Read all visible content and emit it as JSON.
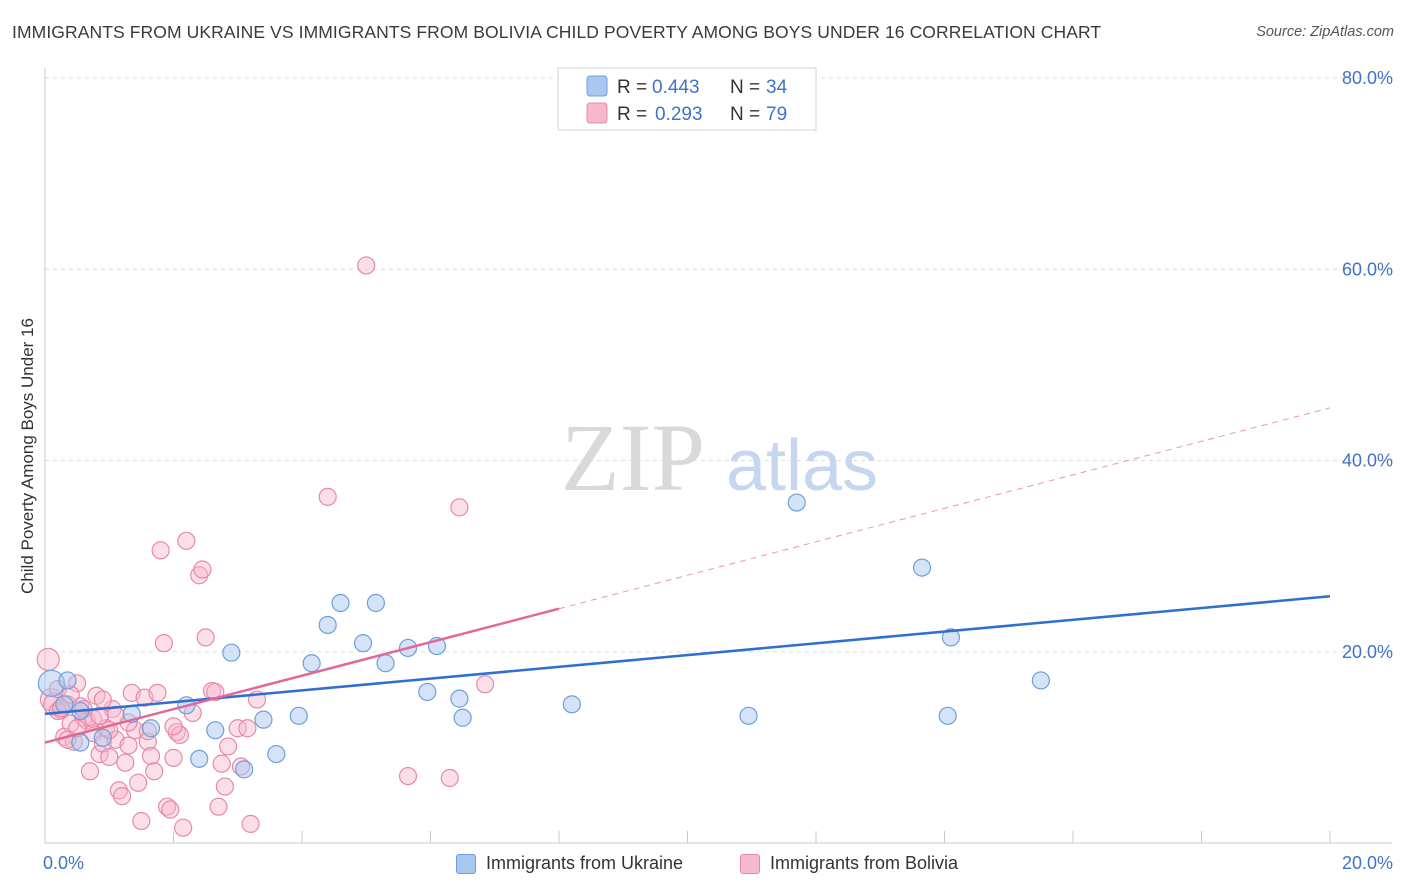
{
  "title": "IMMIGRANTS FROM UKRAINE VS IMMIGRANTS FROM BOLIVIA CHILD POVERTY AMONG BOYS UNDER 16 CORRELATION CHART",
  "source": "Source: ZipAtlas.com",
  "watermark": {
    "zip": "ZIP",
    "atlas": "atlas"
  },
  "colors": {
    "ukraine_fill": "#a9c8f0",
    "ukraine_stroke": "#6f9fd8",
    "ukraine_line": "#2f6fd0",
    "bolivia_fill": "#f6b8cb",
    "bolivia_stroke": "#e889a8",
    "bolivia_line": "#e0689a",
    "axis_text": "#3f73c8",
    "grid": "#dddddd"
  },
  "legend_stats": [
    {
      "r_label": "R =",
      "r_value": "0.443",
      "n_label": "N =",
      "n_value": "34"
    },
    {
      "r_label": "R =",
      "r_value": "0.293",
      "n_label": "N =",
      "n_value": "79"
    }
  ],
  "chart_data": {
    "type": "scatter",
    "title": "IMMIGRANTS FROM UKRAINE VS IMMIGRANTS FROM BOLIVIA CHILD POVERTY AMONG BOYS UNDER 16 CORRELATION CHART",
    "xlabel": "",
    "ylabel": "Child Poverty Among Boys Under 16",
    "xlim": [
      0,
      20
    ],
    "ylim": [
      0,
      80
    ],
    "x_tick_labels": [
      {
        "value": 0,
        "label": "0.0%"
      },
      {
        "value": 20,
        "label": "20.0%"
      }
    ],
    "y_tick_labels": [
      {
        "value": 20,
        "label": "20.0%"
      },
      {
        "value": 40,
        "label": "40.0%"
      },
      {
        "value": 60,
        "label": "60.0%"
      },
      {
        "value": 80,
        "label": "80.0%"
      }
    ],
    "x_minor_ticks": [
      0,
      2,
      4,
      6,
      8,
      10,
      12,
      14,
      16,
      18,
      20
    ],
    "grid": true,
    "series": [
      {
        "name": "Immigrants from Ukraine",
        "r": 0.443,
        "n": 34,
        "trend": {
          "x0": 0,
          "y0": 13.5,
          "x1": 20,
          "y1": 25.8
        },
        "points": [
          [
            0.1,
            16.7
          ],
          [
            0.3,
            14.5
          ],
          [
            0.35,
            17.0
          ],
          [
            0.55,
            10.5
          ],
          [
            0.55,
            13.8
          ],
          [
            0.9,
            11.0
          ],
          [
            1.65,
            12.0
          ],
          [
            2.2,
            14.4
          ],
          [
            2.4,
            8.8
          ],
          [
            2.65,
            11.8
          ],
          [
            2.9,
            19.9
          ],
          [
            3.1,
            7.7
          ],
          [
            3.4,
            12.9
          ],
          [
            3.6,
            9.3
          ],
          [
            3.95,
            13.3
          ],
          [
            4.15,
            18.8
          ],
          [
            4.4,
            22.8
          ],
          [
            4.6,
            25.1
          ],
          [
            4.95,
            20.9
          ],
          [
            5.15,
            25.1
          ],
          [
            5.3,
            18.8
          ],
          [
            5.65,
            20.4
          ],
          [
            5.95,
            15.8
          ],
          [
            6.1,
            20.6
          ],
          [
            6.45,
            15.1
          ],
          [
            6.5,
            13.1
          ],
          [
            8.2,
            14.5
          ],
          [
            10.95,
            13.3
          ],
          [
            11.7,
            35.6
          ],
          [
            13.65,
            28.8
          ],
          [
            14.05,
            13.3
          ],
          [
            14.1,
            21.5
          ],
          [
            15.5,
            17.0
          ],
          [
            1.35,
            13.5
          ]
        ]
      },
      {
        "name": "Immigrants from Bolivia",
        "r": 0.293,
        "n": 79,
        "trend": {
          "x0": 0,
          "y0": 10.5,
          "x1": 8,
          "y1": 24.5
        },
        "trend_ext": {
          "x0": 8,
          "y0": 24.5,
          "x1": 20,
          "y1": 45.5
        },
        "points": [
          [
            0.05,
            19.2
          ],
          [
            0.1,
            15.0
          ],
          [
            0.15,
            14.5
          ],
          [
            0.2,
            16.1
          ],
          [
            0.25,
            13.9
          ],
          [
            0.3,
            11.1
          ],
          [
            0.35,
            14.5
          ],
          [
            0.4,
            12.5
          ],
          [
            0.45,
            10.6
          ],
          [
            0.5,
            16.7
          ],
          [
            0.55,
            14.3
          ],
          [
            0.6,
            13.1
          ],
          [
            0.65,
            12.8
          ],
          [
            0.7,
            7.5
          ],
          [
            0.75,
            11.5
          ],
          [
            0.8,
            15.4
          ],
          [
            0.85,
            9.3
          ],
          [
            0.9,
            10.4
          ],
          [
            0.95,
            12.0
          ],
          [
            1.0,
            9.0
          ],
          [
            1.05,
            14.0
          ],
          [
            1.1,
            10.8
          ],
          [
            1.15,
            5.5
          ],
          [
            1.2,
            4.9
          ],
          [
            1.25,
            8.4
          ],
          [
            1.3,
            10.2
          ],
          [
            1.35,
            15.7
          ],
          [
            1.4,
            11.8
          ],
          [
            1.45,
            6.3
          ],
          [
            1.5,
            2.3
          ],
          [
            1.55,
            15.2
          ],
          [
            1.6,
            10.6
          ],
          [
            1.65,
            9.1
          ],
          [
            1.7,
            7.5
          ],
          [
            1.75,
            15.7
          ],
          [
            1.8,
            30.6
          ],
          [
            1.85,
            20.9
          ],
          [
            1.9,
            3.8
          ],
          [
            1.95,
            3.5
          ],
          [
            2.0,
            8.9
          ],
          [
            2.05,
            11.6
          ],
          [
            2.1,
            11.3
          ],
          [
            2.15,
            1.6
          ],
          [
            2.2,
            31.6
          ],
          [
            2.3,
            13.6
          ],
          [
            2.4,
            28.0
          ],
          [
            2.45,
            28.6
          ],
          [
            2.5,
            21.5
          ],
          [
            2.6,
            15.9
          ],
          [
            2.65,
            15.8
          ],
          [
            2.7,
            3.8
          ],
          [
            2.75,
            8.3
          ],
          [
            2.8,
            5.9
          ],
          [
            2.85,
            10.1
          ],
          [
            3.0,
            12.0
          ],
          [
            3.05,
            8.0
          ],
          [
            3.15,
            12.0
          ],
          [
            3.2,
            2.0
          ],
          [
            3.3,
            15.0
          ],
          [
            4.4,
            36.2
          ],
          [
            5.0,
            60.4
          ],
          [
            5.65,
            7.0
          ],
          [
            6.3,
            6.8
          ],
          [
            6.45,
            35.1
          ],
          [
            6.85,
            16.6
          ],
          [
            0.6,
            14.0
          ],
          [
            0.75,
            13.0
          ],
          [
            1.0,
            11.8
          ],
          [
            1.3,
            12.6
          ],
          [
            0.4,
            15.5
          ],
          [
            0.2,
            13.8
          ],
          [
            0.5,
            12.0
          ],
          [
            0.9,
            15.0
          ],
          [
            1.1,
            13.4
          ],
          [
            0.35,
            10.8
          ],
          [
            1.6,
            11.7
          ],
          [
            0.85,
            13.3
          ],
          [
            2.0,
            12.2
          ],
          [
            0.25,
            14.1
          ]
        ]
      }
    ]
  },
  "legend_bottom": [
    {
      "label": "Immigrants from Ukraine"
    },
    {
      "label": "Immigrants from Bolivia"
    }
  ]
}
